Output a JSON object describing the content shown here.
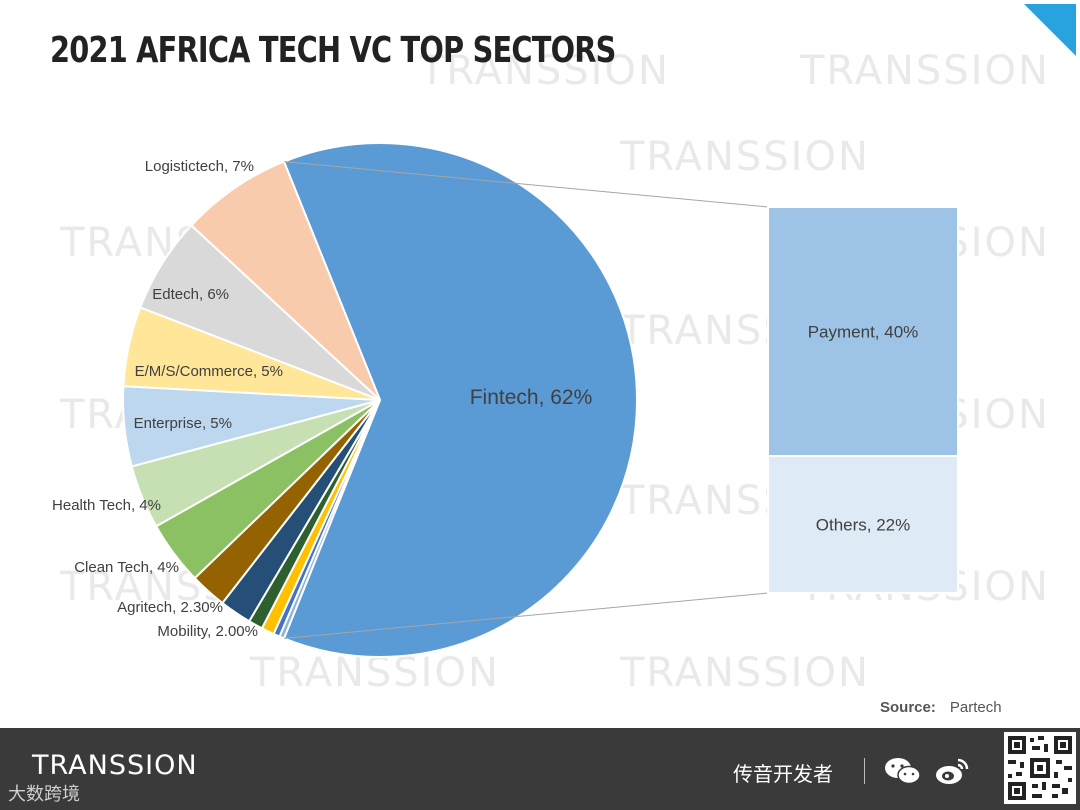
{
  "title": "2021 AFRICA TECH VC TOP SECTORS",
  "watermark_text": "TRANSSION",
  "chart_data": {
    "type": "pie",
    "subtype": "bar-of-pie",
    "title": "2021 AFRICA TECH VC TOP SECTORS",
    "slices": [
      {
        "label": "Fintech, 62%",
        "value": 62,
        "color": "#5b9bd5"
      },
      {
        "label": "",
        "value": 0.3,
        "color": "#8fb4d8"
      },
      {
        "label": "",
        "value": 0.4,
        "color": "#4472c4"
      },
      {
        "label": "",
        "value": 0.8,
        "color": "#ffc000"
      },
      {
        "label": "",
        "value": 0.9,
        "color": "#2e5f2e"
      },
      {
        "label": "Mobility, 2.00%",
        "value": 2.0,
        "color": "#264f78"
      },
      {
        "label": "Agritech, 2.30%",
        "value": 2.3,
        "color": "#946300"
      },
      {
        "label": "Clean Tech, 4%",
        "value": 4,
        "color": "#8bc063"
      },
      {
        "label": "Health Tech, 4%",
        "value": 4,
        "color": "#c6e0b4"
      },
      {
        "label": "Enterprise, 5%",
        "value": 5,
        "color": "#bdd7ee"
      },
      {
        "label": "E/M/S/Commerce, 5%",
        "value": 5,
        "color": "#ffe699"
      },
      {
        "label": "Edtech, 6%",
        "value": 6,
        "color": "#d9d9d9"
      },
      {
        "label": "Logistictech, 7%",
        "value": 7,
        "color": "#f8cbad"
      }
    ],
    "breakdown": {
      "parent": "Fintech",
      "items": [
        {
          "label": "Payment, 40%",
          "value": 40,
          "color": "#9dc3e6"
        },
        {
          "label": "Others, 22%",
          "value": 22,
          "color": "#deebf7"
        }
      ]
    },
    "legend": "none"
  },
  "source": {
    "label": "Source:",
    "value": "Partech"
  },
  "footer": {
    "brand": "TRANSSION",
    "brand_sub": "大数跨境",
    "cn_label": "传音开发者",
    "accent": "#29a3e0"
  }
}
